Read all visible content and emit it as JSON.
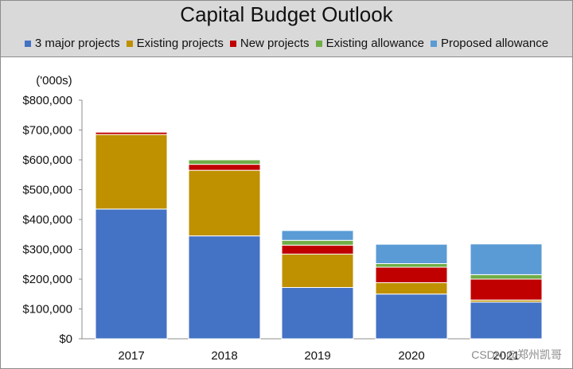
{
  "chart_data": {
    "type": "bar",
    "stacked": true,
    "title": "Capital Budget Outlook",
    "unit_label": "('000s)",
    "categories": [
      "2017",
      "2018",
      "2019",
      "2020",
      "2021"
    ],
    "series": [
      {
        "name": "3 major projects",
        "color": "#4472c4",
        "values": [
          435000,
          345000,
          172000,
          150000,
          123000
        ]
      },
      {
        "name": "Existing projects",
        "color": "#bf9000",
        "values": [
          250000,
          220000,
          112000,
          38000,
          7000
        ]
      },
      {
        "name": "New projects",
        "color": "#c00000",
        "values": [
          8000,
          20000,
          30000,
          52000,
          70000
        ]
      },
      {
        "name": "Existing allowance",
        "color": "#70ad47",
        "values": [
          2000,
          15000,
          16000,
          12000,
          15000
        ]
      },
      {
        "name": "Proposed allowance",
        "color": "#5b9bd5",
        "values": [
          0,
          0,
          33000,
          65000,
          103000
        ]
      }
    ],
    "yticks": [
      "$0",
      "$100,000",
      "$200,000",
      "$300,000",
      "$400,000",
      "$500,000",
      "$600,000",
      "$700,000",
      "$800,000"
    ],
    "ylim": [
      0,
      800000
    ],
    "grid": false,
    "legend_position": "top"
  },
  "watermark": "CSDN @郑州凯哥"
}
